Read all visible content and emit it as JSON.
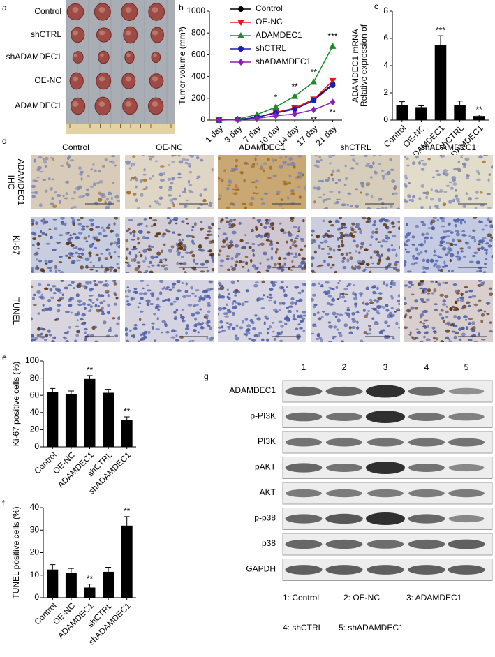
{
  "figure": {
    "panel_labels": [
      "a",
      "b",
      "c",
      "d",
      "e",
      "f",
      "g"
    ],
    "panel_a": {
      "rows": [
        "Control",
        "shCTRL",
        "shADAMDEC1",
        "OE-NC",
        "ADAMDEC1"
      ]
    },
    "panel_d": {
      "columns": [
        "Control",
        "OE-NC",
        "ADAMDEC1",
        "shCTRL",
        "shADAMDEC1"
      ],
      "rows": [
        [
          "IHC",
          "ADAMDEC1"
        ],
        [
          "Ki-67"
        ],
        [
          "TUNEL"
        ]
      ]
    },
    "panel_g": {
      "lanes": [
        "1",
        "2",
        "3",
        "4",
        "5"
      ],
      "proteins": [
        "ADAMDEC1",
        "p-PI3K",
        "PI3K",
        "pAKT",
        "AKT",
        "p-p38",
        "p38",
        "GAPDH"
      ],
      "legend": [
        "1: Control",
        "2: OE-NC",
        "3: ADAMDEC1",
        "4: shCTRL",
        "5: shADAMDEC1"
      ]
    }
  },
  "chart_data": [
    {
      "type": "line",
      "ylabel": [
        "Tumor volume (mm³)"
      ],
      "categories": [
        "1 day",
        "3 day",
        "7 day",
        "10 day",
        "14 day",
        "17 day",
        "21 day"
      ],
      "ylim": [
        0,
        1000
      ],
      "yticks": [
        0,
        200,
        400,
        600,
        800,
        1000
      ],
      "series": [
        {
          "name": "Control",
          "color": "#000000",
          "marker": "circle",
          "values": [
            0,
            5,
            25,
            70,
            110,
            190,
            330
          ]
        },
        {
          "name": "OE-NC",
          "color": "#e8141b",
          "marker": "triangle-down",
          "values": [
            0,
            5,
            25,
            70,
            110,
            190,
            360
          ]
        },
        {
          "name": "ADAMDEC1",
          "color": "#1a8a2a",
          "marker": "triangle-up",
          "values": [
            0,
            10,
            50,
            120,
            220,
            350,
            680
          ],
          "significance": [
            null,
            null,
            null,
            "*",
            "**",
            "**",
            "***"
          ]
        },
        {
          "name": "shCTRL",
          "color": "#1d1db5",
          "marker": "circle",
          "values": [
            0,
            5,
            25,
            65,
            100,
            180,
            320
          ]
        },
        {
          "name": "shADAMDEC1",
          "color": "#8a1fb0",
          "marker": "diamond",
          "values": [
            0,
            3,
            15,
            40,
            55,
            95,
            165
          ],
          "significance": [
            null,
            null,
            null,
            null,
            null,
            "**",
            "**"
          ]
        }
      ]
    },
    {
      "type": "bar",
      "ylabel": [
        "Relative expression of",
        "ADAMDEC1 mRNA"
      ],
      "categories": [
        "Control",
        "OE-NC",
        "ADAMDEC1",
        "shCTRL",
        "shADAMDEC1"
      ],
      "values": [
        1.1,
        0.95,
        5.5,
        1.1,
        0.3
      ],
      "errors": [
        0.25,
        0.1,
        0.7,
        0.3,
        0.08
      ],
      "significance": [
        null,
        null,
        "***",
        null,
        "**"
      ],
      "color": "#000000",
      "ylim": [
        0,
        8
      ],
      "yticks": [
        0,
        2,
        4,
        6,
        8
      ]
    },
    {
      "type": "bar",
      "ylabel": [
        "Ki-67 positive cells (%)"
      ],
      "categories": [
        "Control",
        "OE-NC",
        "ADAMDEC1",
        "shCTRL",
        "shADAMDEC1"
      ],
      "values": [
        64,
        61,
        79,
        63,
        31
      ],
      "errors": [
        4,
        4,
        4,
        4,
        4
      ],
      "significance": [
        null,
        null,
        "**",
        null,
        "**"
      ],
      "color": "#000000",
      "ylim": [
        0,
        100
      ],
      "yticks": [
        0,
        20,
        40,
        60,
        80,
        100
      ]
    },
    {
      "type": "bar",
      "ylabel": [
        "TUNEL positive cells (%)"
      ],
      "categories": [
        "Control",
        "OE-NC",
        "ADAMDEC1",
        "shCTRL",
        "shADAMDEC1"
      ],
      "values": [
        12.5,
        11,
        4.5,
        11.5,
        32
      ],
      "errors": [
        2.2,
        2,
        1.5,
        2,
        4
      ],
      "significance": [
        null,
        null,
        "**",
        null,
        "**"
      ],
      "color": "#000000",
      "ylim": [
        0,
        40
      ],
      "yticks": [
        0,
        10,
        20,
        30,
        40
      ]
    }
  ]
}
